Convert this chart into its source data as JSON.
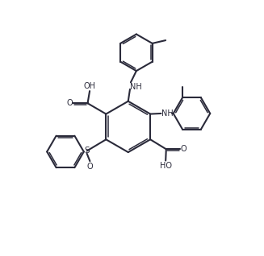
{
  "bg_color": "#ffffff",
  "line_color": "#2a2a3a",
  "line_width": 1.5,
  "figsize": [
    3.27,
    3.18
  ],
  "dpi": 100,
  "xlim": [
    0,
    10
  ],
  "ylim": [
    0,
    10
  ]
}
